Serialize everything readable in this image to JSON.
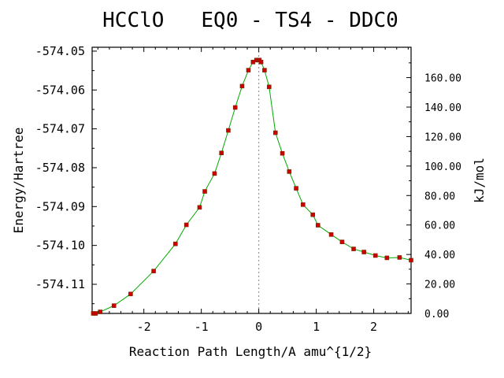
{
  "chart_data": {
    "type": "line",
    "title": "HCClO   EQ0 - TS4 - DDC0",
    "xlabel": "Reaction Path Length/A amu^{1/2}",
    "ylabel": "Energy/Hartree",
    "y2label": "kJ/mol",
    "xlim": [
      -2.9,
      2.65
    ],
    "ylim": [
      -574.1175,
      -574.049
    ],
    "y2lim": [
      0,
      180.6
    ],
    "grid": false,
    "x_ticks": [
      -2,
      -1,
      0,
      1,
      2
    ],
    "x_tick_labels": [
      "-2",
      "-1",
      "0",
      "1",
      "2"
    ],
    "y_ticks": [
      -574.05,
      -574.06,
      -574.07,
      -574.08,
      -574.09,
      -574.1,
      -574.11
    ],
    "y_tick_labels": [
      "-574.05",
      "-574.06",
      "-574.07",
      "-574.08",
      "-574.09",
      "-574.10",
      "-574.11"
    ],
    "y2_ticks": [
      0,
      20,
      40,
      60,
      80,
      100,
      120,
      140,
      160
    ],
    "y2_tick_labels": [
      "0.00",
      "20.00",
      "40.00",
      "60.00",
      "80.00",
      "100.00",
      "120.00",
      "140.00",
      "160.00"
    ],
    "ts_marker_x": 0,
    "curve_color": "#00aa00",
    "marker_color": "#cc0000",
    "marker_edge": "#7a2a00",
    "series": [
      {
        "x": [
          -2.88,
          -2.84,
          -2.76,
          -2.52,
          -2.23,
          -1.83,
          -1.45,
          -1.26,
          -1.03,
          -0.94,
          -0.77,
          -0.65,
          -0.53,
          -0.41,
          -0.29,
          -0.18,
          -0.1,
          -0.04,
          -0.01,
          0.0,
          0.01,
          0.04,
          0.1,
          0.18,
          0.29,
          0.41,
          0.53,
          0.65,
          0.77,
          0.94,
          1.03,
          1.26,
          1.45,
          1.65,
          1.83,
          2.03,
          2.23,
          2.45,
          2.65
        ],
        "y": [
          -574.1175,
          -574.1175,
          -574.1171,
          -574.1155,
          -574.1125,
          -574.1066,
          -574.0996,
          -574.0947,
          -574.0902,
          -574.0861,
          -574.0815,
          -574.0762,
          -574.0704,
          -574.0645,
          -574.059,
          -574.0549,
          -574.0528,
          -574.0523,
          -574.0523,
          -574.0523,
          -574.0523,
          -574.0528,
          -574.0549,
          -574.0592,
          -574.071,
          -574.0763,
          -574.081,
          -574.0853,
          -574.0895,
          -574.0921,
          -574.0948,
          -574.0972,
          -574.0991,
          -574.1009,
          -574.1017,
          -574.1026,
          -574.1032,
          -574.1031,
          -574.1038
        ]
      }
    ]
  }
}
